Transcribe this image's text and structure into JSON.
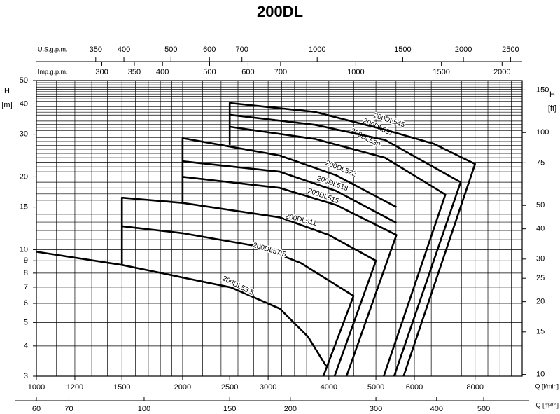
{
  "chart_data": {
    "type": "line",
    "title": "200DL",
    "x_scale": "log",
    "y_scale": "log",
    "xlim": [
      1000,
      10000
    ],
    "ylim": [
      3,
      50
    ],
    "xticks": [
      1000,
      1200,
      1500,
      2000,
      2500,
      3000,
      4000,
      5000,
      6000,
      8000
    ],
    "xlabel": "Q [l/min]",
    "yticks": [
      3,
      4,
      5,
      6,
      7,
      8,
      9,
      10,
      15,
      20,
      30,
      40,
      50
    ],
    "ylabel": "H",
    "ylabel_unit": "[m]",
    "y2lim": [
      9.843,
      164.04
    ],
    "y2ticks": [
      10,
      15,
      20,
      25,
      30,
      40,
      50,
      75,
      100,
      150
    ],
    "y2label": "H",
    "y2label_unit": "[ft]",
    "secondary_x_axes": [
      {
        "label": "Q [m³/h]",
        "lim": [
          60,
          600
        ],
        "ticks": [
          60,
          70,
          100,
          150,
          200,
          300,
          400,
          500
        ],
        "position": "bottom"
      },
      {
        "label": "U.S.g.p.m.",
        "lim": [
          264.17,
          2641.7
        ],
        "ticks": [
          350,
          400,
          500,
          600,
          700,
          1000,
          1500,
          2000,
          2500
        ],
        "position": "top"
      },
      {
        "label": "Imp.g.p.m.",
        "lim": [
          219.97,
          2199.7
        ],
        "ticks": [
          300,
          350,
          400,
          500,
          600,
          700,
          1000,
          1500,
          2000
        ],
        "position": "top"
      }
    ],
    "grid": true,
    "xgrid": [
      1000,
      1100,
      1200,
      1300,
      1400,
      1500,
      1600,
      1700,
      1800,
      1900,
      2000,
      2200,
      2400,
      2600,
      2800,
      3000,
      3200,
      3400,
      3600,
      3800,
      4000,
      4500,
      5000,
      5500,
      6000,
      6500,
      7000,
      7500,
      8000,
      8500,
      9000,
      9500,
      10000
    ],
    "ygrid": [
      3,
      4,
      5,
      6,
      7,
      8,
      9,
      10,
      11,
      12,
      13,
      14,
      15,
      16,
      17,
      18,
      19,
      20,
      21,
      22,
      23,
      24,
      25,
      26,
      27,
      28,
      29,
      30,
      31,
      32,
      33,
      34,
      35,
      36,
      37,
      38,
      39,
      40,
      41,
      42,
      43,
      44,
      45,
      46,
      47,
      48,
      49,
      50
    ],
    "series": [
      {
        "name": "200DL55.5",
        "color": "#000000",
        "x": [
          1000,
          1500,
          2515,
          3170,
          3623,
          3950
        ],
        "values": [
          9.8,
          8.65,
          6.98,
          5.71,
          4.37,
          3.3
        ]
      },
      {
        "name": "200DL57.5",
        "color": "#000000",
        "x": [
          1500,
          2000,
          2872,
          3505,
          4496,
          3897
        ],
        "values": [
          12.5,
          11.7,
          10.3,
          8.8,
          6.44,
          3
        ]
      },
      {
        "name": "200DL511",
        "color": "#000000",
        "x": [
          1500,
          1500,
          2000,
          3170,
          4000,
          5000,
          4110
        ],
        "values": [
          8.65,
          16.4,
          15.6,
          13.6,
          11.5,
          9.0,
          3
        ]
      },
      {
        "name": "200DL515",
        "color": "#000000",
        "x": [
          2000,
          3170,
          4140,
          5510,
          4350
        ],
        "values": [
          20.0,
          18.0,
          15.3,
          11.5,
          3
        ]
      },
      {
        "name": "200DL518",
        "color": "#000000",
        "x": [
          2000,
          3170,
          4140,
          5510
        ],
        "values": [
          23.2,
          21.0,
          17.5,
          12.9
        ]
      },
      {
        "name": "200DL522",
        "color": "#000000",
        "x": [
          2000,
          2000,
          3170,
          4140,
          5510
        ],
        "values": [
          15.6,
          28.9,
          24.5,
          20.3,
          15.0
        ]
      },
      {
        "name": "200DL530",
        "color": "#000000",
        "x": [
          2500,
          3743,
          5220,
          6950,
          5190
        ],
        "values": [
          32.2,
          28.7,
          24.0,
          16.9,
          3
        ]
      },
      {
        "name": "200DL537",
        "color": "#000000",
        "x": [
          2500,
          3743,
          5220,
          7470,
          5450
        ],
        "values": [
          36.1,
          32.8,
          28.4,
          19.0,
          3
        ]
      },
      {
        "name": "200DL545",
        "color": "#000000",
        "x": [
          2500,
          2500,
          3743,
          5220,
          6580,
          8000,
          5700
        ],
        "values": [
          27.1,
          40.4,
          37.1,
          31.3,
          27.4,
          22.6,
          3
        ]
      }
    ]
  }
}
